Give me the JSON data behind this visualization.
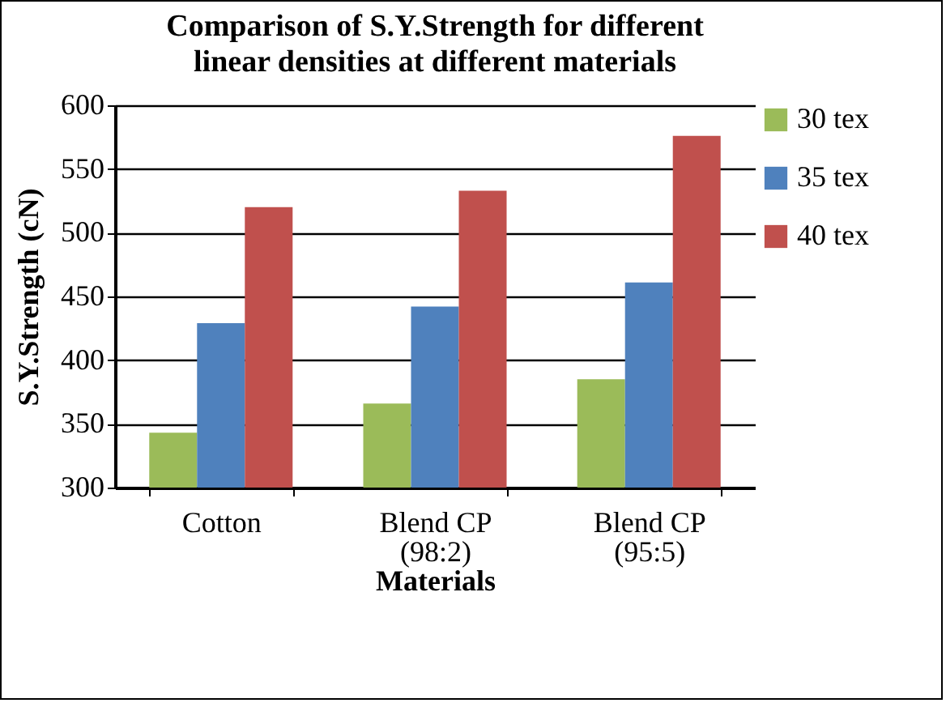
{
  "chart_data": {
    "type": "bar",
    "title": "Comparison of S.Y.Strength for different linear densities at different materials",
    "xlabel": "Materials",
    "ylabel": "S.Y.Strength (cN)",
    "categories": [
      "Cotton",
      "Blend CP (98:2)",
      "Blend CP (95:5)"
    ],
    "series": [
      {
        "name": "30 tex",
        "color": "#9bbb59",
        "values": [
          343,
          366,
          385
        ]
      },
      {
        "name": "35 tex",
        "color": "#4f81bd",
        "values": [
          429,
          442,
          461
        ]
      },
      {
        "name": "40 tex",
        "color": "#c0504d",
        "values": [
          520,
          533,
          576
        ]
      }
    ],
    "ylim": [
      300,
      600
    ],
    "yticks": [
      300,
      350,
      400,
      450,
      500,
      550,
      600
    ],
    "grid": "y",
    "legend": "right"
  }
}
